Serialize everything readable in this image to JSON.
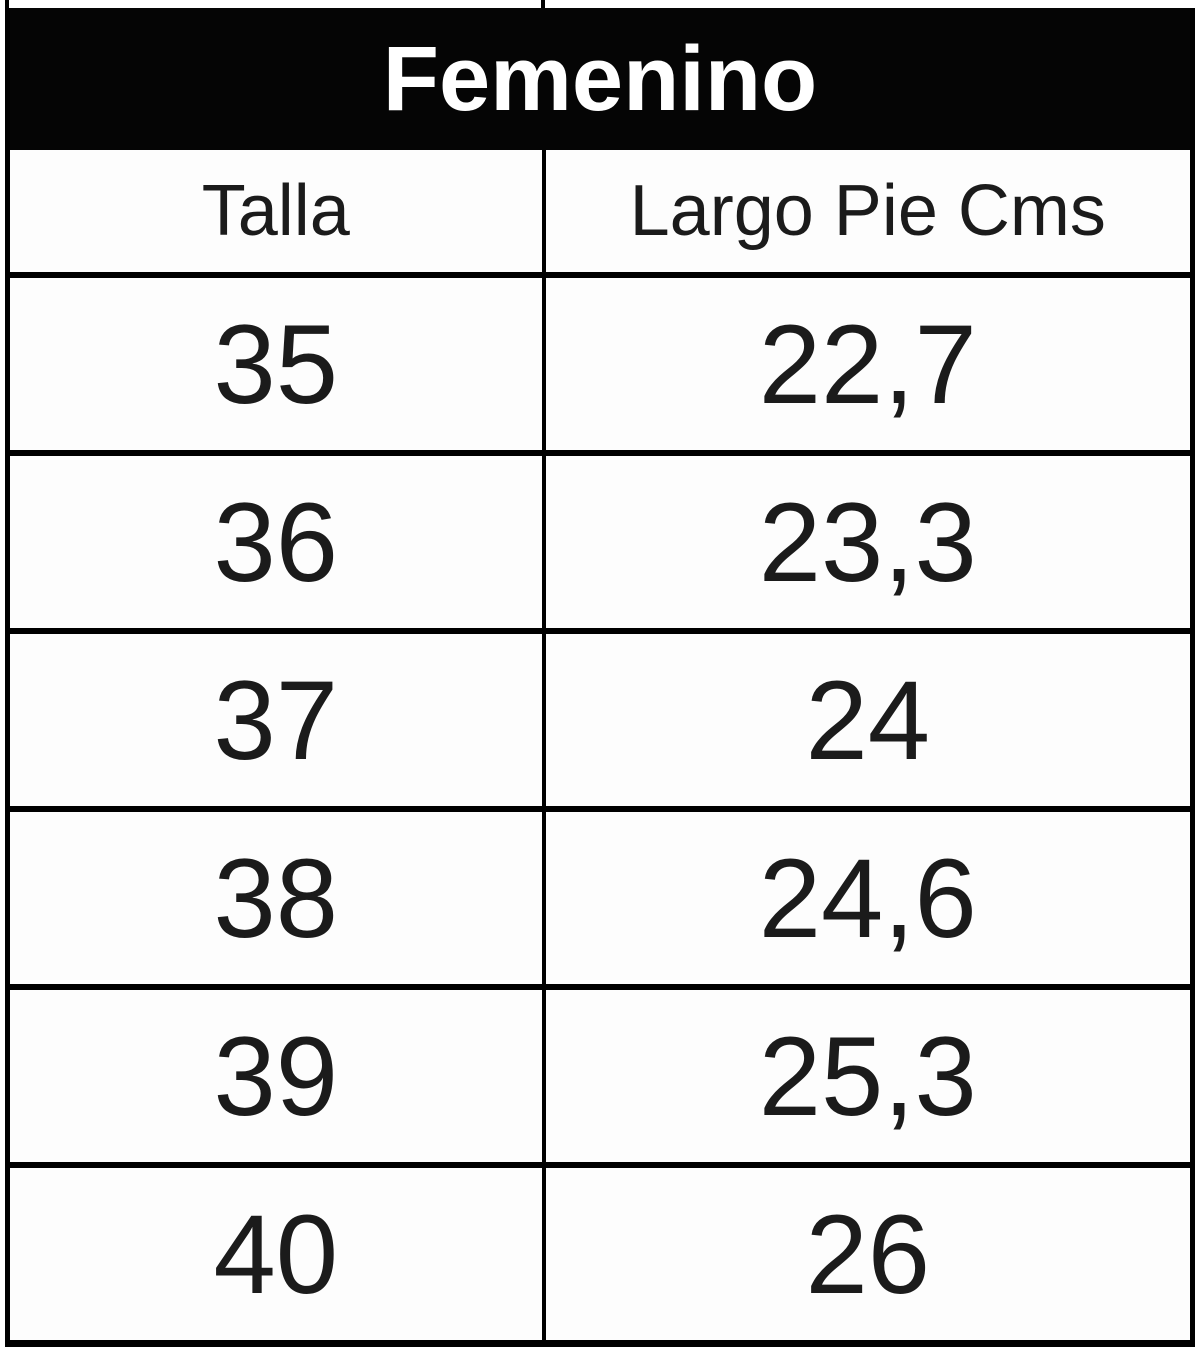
{
  "table": {
    "title": "Femenino",
    "columns": [
      "Talla",
      "Largo Pie Cms"
    ],
    "rows": [
      [
        "35",
        "22,7"
      ],
      [
        "36",
        "23,3"
      ],
      [
        "37",
        "24"
      ],
      [
        "38",
        "24,6"
      ],
      [
        "39",
        "25,3"
      ],
      [
        "40",
        "26"
      ]
    ]
  },
  "chart_data": {
    "type": "table",
    "title": "Femenino",
    "columns": [
      "Talla",
      "Largo Pie Cms"
    ],
    "rows": [
      [
        35,
        22.7
      ],
      [
        36,
        23.3
      ],
      [
        37,
        24
      ],
      [
        38,
        24.6
      ],
      [
        39,
        25.3
      ],
      [
        40,
        26
      ]
    ],
    "layout": "title band spans both columns; all cells center-aligned; thick black grid borders"
  },
  "colors": {
    "title_band_bg": "#050505",
    "title_text": "#ffffff",
    "cell_bg": "#fdfdfd",
    "cell_text": "#1b1b1b",
    "border": "#000000",
    "page_bg": "#ffffff"
  }
}
